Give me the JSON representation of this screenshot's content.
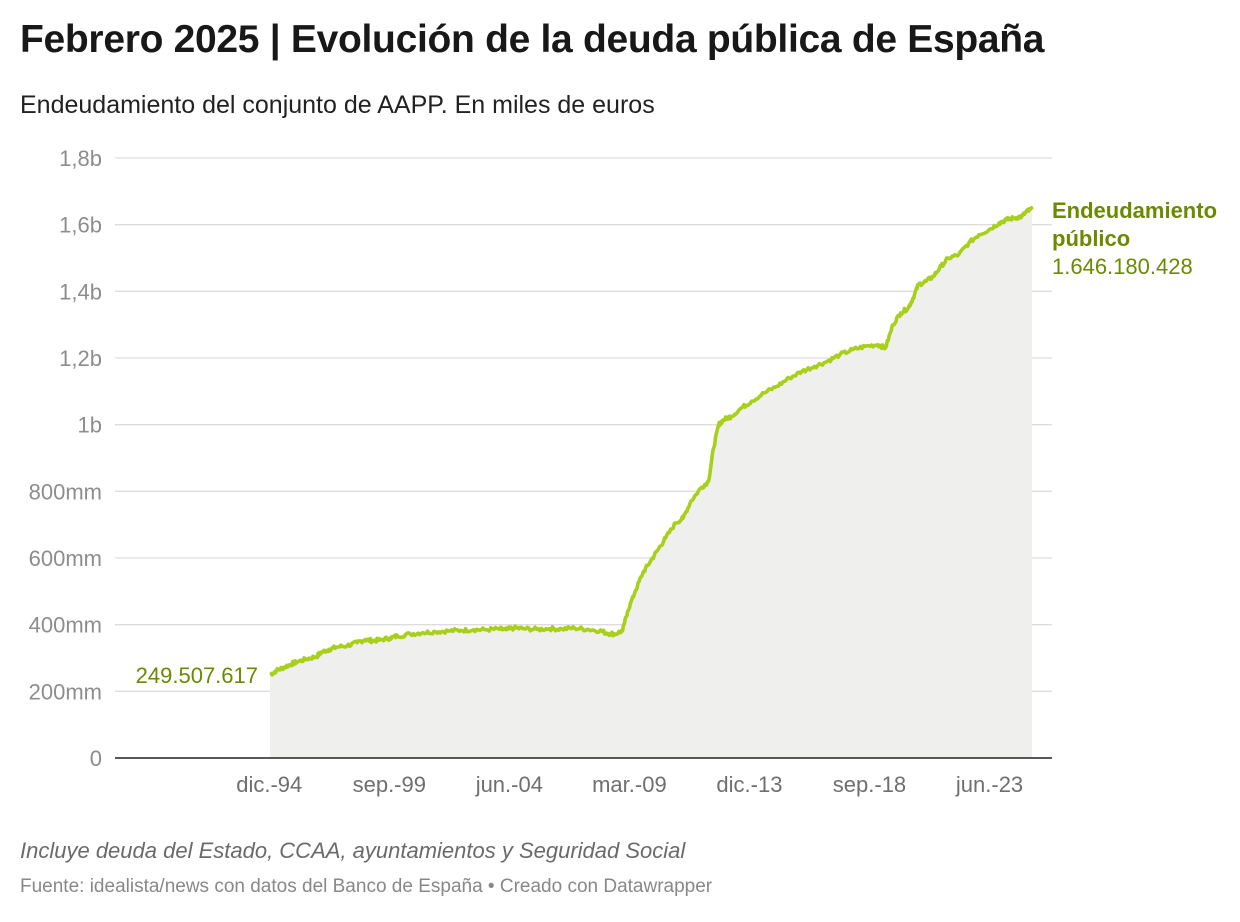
{
  "title": "Febrero 2025 | Evolución de la deuda pública de España",
  "subtitle": "Endeudamiento del conjunto de AAPP. En miles de euros",
  "note": "Incluye deuda del Estado, CCAA, ayuntamientos y Seguridad Social",
  "source": "Fuente: idealista/news con datos del Banco de España • Creado con Datawrapper",
  "colors": {
    "line": "#a9cf1b",
    "area": "#efefee",
    "label": "#6b8a00",
    "grid": "#dddddd",
    "axis": "#222222"
  },
  "chart_data": {
    "type": "area",
    "title": "Febrero 2025 | Evolución de la deuda pública de España",
    "ylabel": "En miles de euros",
    "x_range": [
      1994.95,
      2025.1
    ],
    "ylim": [
      0,
      1.8
    ],
    "y_unit": "billones (b)",
    "y_ticks": [
      {
        "value": 1.8,
        "label": "1,8b"
      },
      {
        "value": 1.6,
        "label": "1,6b"
      },
      {
        "value": 1.4,
        "label": "1,4b"
      },
      {
        "value": 1.2,
        "label": "1,2b"
      },
      {
        "value": 1.0,
        "label": "1b"
      },
      {
        "value": 0.8,
        "label": "800mm"
      },
      {
        "value": 0.6,
        "label": "600mm"
      },
      {
        "value": 0.4,
        "label": "400mm"
      },
      {
        "value": 0.2,
        "label": "200mm"
      },
      {
        "value": 0,
        "label": "0"
      }
    ],
    "x_ticks": [
      {
        "value": 1994.92,
        "label": "dic.-94"
      },
      {
        "value": 1999.67,
        "label": "sep.-99"
      },
      {
        "value": 2004.42,
        "label": "jun.-04"
      },
      {
        "value": 2009.17,
        "label": "mar.-09"
      },
      {
        "value": 2013.92,
        "label": "dic.-13"
      },
      {
        "value": 2018.67,
        "label": "sep.-18"
      },
      {
        "value": 2023.42,
        "label": "jun.-23"
      }
    ],
    "series": [
      {
        "name": "Endeudamiento público",
        "x": [
          1994.95,
          1995.2,
          1995.5,
          1995.8,
          1996.0,
          1996.4,
          1996.8,
          1997.0,
          1997.3,
          1997.6,
          1998.0,
          1998.4,
          1998.7,
          1999.0,
          1999.3,
          1999.7,
          2000.0,
          2000.5,
          2001.0,
          2001.5,
          2002.0,
          2002.5,
          2003.0,
          2003.5,
          2004.0,
          2004.3,
          2004.6,
          2005.0,
          2005.5,
          2006.0,
          2006.5,
          2007.0,
          2007.5,
          2008.0,
          2008.3,
          2008.6,
          2008.9,
          2009.1,
          2009.4,
          2009.7,
          2010.0,
          2010.3,
          2010.6,
          2011.0,
          2011.3,
          2011.6,
          2012.0,
          2012.3,
          2012.5,
          2012.7,
          2012.9,
          2013.2,
          2013.6,
          2014.0,
          2014.5,
          2015.0,
          2015.5,
          2016.0,
          2016.5,
          2017.0,
          2017.5,
          2018.0,
          2018.5,
          2019.0,
          2019.3,
          2019.6,
          2019.9,
          2020.2,
          2020.4,
          2020.6,
          2020.9,
          2021.2,
          2021.5,
          2021.8,
          2022.2,
          2022.6,
          2023.0,
          2023.4,
          2023.8,
          2024.1,
          2024.4,
          2024.7,
          2024.9,
          2025.1
        ],
        "values": [
          0.2495,
          0.262,
          0.272,
          0.282,
          0.288,
          0.297,
          0.305,
          0.318,
          0.326,
          0.333,
          0.337,
          0.346,
          0.355,
          0.352,
          0.354,
          0.36,
          0.366,
          0.372,
          0.376,
          0.379,
          0.381,
          0.383,
          0.385,
          0.385,
          0.387,
          0.385,
          0.39,
          0.388,
          0.386,
          0.388,
          0.387,
          0.39,
          0.386,
          0.382,
          0.374,
          0.372,
          0.382,
          0.44,
          0.5,
          0.555,
          0.59,
          0.625,
          0.66,
          0.705,
          0.72,
          0.77,
          0.81,
          0.83,
          0.93,
          1.0,
          1.015,
          1.025,
          1.05,
          1.07,
          1.095,
          1.115,
          1.14,
          1.16,
          1.175,
          1.19,
          1.21,
          1.225,
          1.235,
          1.24,
          1.23,
          1.3,
          1.335,
          1.35,
          1.38,
          1.42,
          1.43,
          1.445,
          1.475,
          1.5,
          1.51,
          1.545,
          1.57,
          1.585,
          1.605,
          1.615,
          1.62,
          1.625,
          1.64,
          1.646
        ]
      }
    ],
    "annotations": [
      {
        "text": "249.507.617",
        "x": 1994.95,
        "y": 0.2495
      },
      {
        "name": "Endeudamiento público",
        "text": "1.646.180.428",
        "x": 2025.1,
        "y": 1.646
      }
    ]
  }
}
